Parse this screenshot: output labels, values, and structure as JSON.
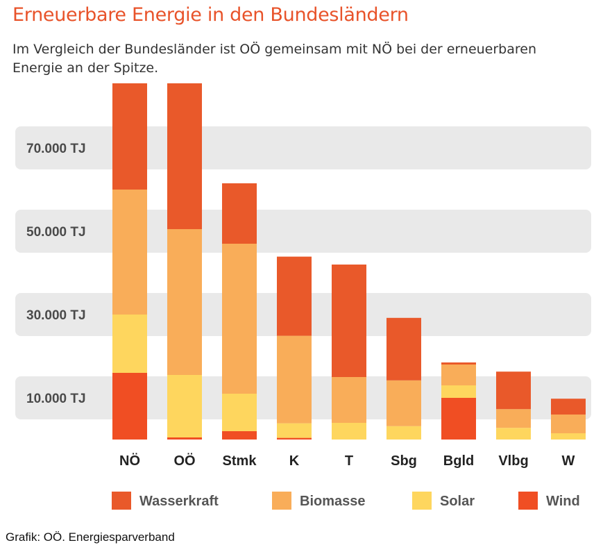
{
  "header": {
    "title": "Erneuerbare Energie in den Bundesländern",
    "subtitle": "Im Vergleich der Bundesländer ist OÖ gemeinsam mit NÖ bei der erneuerbaren Energie an der Spitze."
  },
  "footer": {
    "source": "Grafik: OÖ. Energiesparverband"
  },
  "chart_data": {
    "type": "bar",
    "stacked": true,
    "categories": [
      "NÖ",
      "OÖ",
      "Stmk",
      "K",
      "T",
      "Sbg",
      "Bgld",
      "Vlbg",
      "W"
    ],
    "series": [
      {
        "name": "Wind",
        "color": "#f04e23",
        "values": [
          16000,
          500,
          2000,
          400,
          0,
          0,
          10000,
          0,
          0
        ]
      },
      {
        "name": "Solar",
        "color": "#fed65e",
        "values": [
          14000,
          15000,
          9000,
          3500,
          4000,
          3200,
          3000,
          2800,
          1500
        ]
      },
      {
        "name": "Biomasse",
        "color": "#f9ad59",
        "values": [
          30000,
          35000,
          36000,
          21000,
          11000,
          11000,
          5000,
          4500,
          4500
        ]
      },
      {
        "name": "Wasserkraft",
        "color": "#e9592a",
        "values": [
          25500,
          35000,
          14500,
          19000,
          27000,
          15000,
          500,
          9000,
          3800
        ]
      }
    ],
    "legend_order": [
      "Wasserkraft",
      "Biomasse",
      "Solar",
      "Wind"
    ],
    "legend_position": "bottom",
    "y_ticks": [
      {
        "value": 10000,
        "label": "10.000 TJ"
      },
      {
        "value": 30000,
        "label": "30.000 TJ"
      },
      {
        "value": 50000,
        "label": "50.000 TJ"
      },
      {
        "value": 70000,
        "label": "70.000 TJ"
      }
    ],
    "ylim": [
      0,
      90000
    ],
    "xlabel": "",
    "ylabel": ""
  }
}
